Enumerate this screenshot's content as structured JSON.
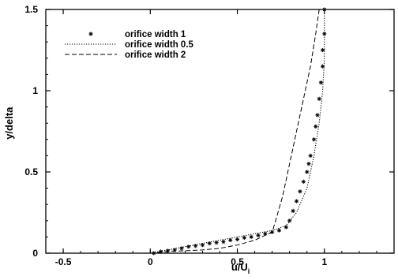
{
  "chart_data": {
    "type": "line",
    "xlabel": "u/U",
    "xlabel_subscript": "i",
    "ylabel": "y/delta",
    "xlim": [
      -0.6,
      1.4
    ],
    "ylim": [
      0,
      1.5
    ],
    "xticks": [
      {
        "value": -0.5,
        "label": "-0.5"
      },
      {
        "value": 0,
        "label": "0"
      },
      {
        "value": 0.5,
        "label": "0.5"
      },
      {
        "value": 1,
        "label": "1"
      }
    ],
    "yticks": [
      {
        "value": 0,
        "label": "0"
      },
      {
        "value": 0.5,
        "label": "0.5"
      },
      {
        "value": 1,
        "label": "1"
      },
      {
        "value": 1.5,
        "label": "1.5"
      }
    ],
    "legend_position": "top-left",
    "series": [
      {
        "name": "orifice width 1",
        "style": "asterisk-markers",
        "x": [
          0.02,
          0.06,
          0.1,
          0.14,
          0.18,
          0.22,
          0.26,
          0.3,
          0.34,
          0.38,
          0.42,
          0.46,
          0.5,
          0.54,
          0.58,
          0.62,
          0.66,
          0.7,
          0.74,
          0.78,
          0.8,
          0.82,
          0.84,
          0.86,
          0.88,
          0.9,
          0.91,
          0.92,
          0.94,
          0.95,
          0.96,
          0.97,
          0.98,
          0.99,
          0.99,
          1.0,
          1.0
        ],
        "y": [
          0.0,
          0.01,
          0.015,
          0.02,
          0.03,
          0.04,
          0.045,
          0.05,
          0.06,
          0.065,
          0.07,
          0.08,
          0.085,
          0.095,
          0.1,
          0.11,
          0.12,
          0.13,
          0.14,
          0.16,
          0.2,
          0.26,
          0.32,
          0.38,
          0.44,
          0.5,
          0.55,
          0.6,
          0.7,
          0.78,
          0.85,
          0.95,
          1.05,
          1.15,
          1.25,
          1.35,
          1.5
        ]
      },
      {
        "name": "orifice width 0.5",
        "style": "dotted",
        "x": [
          0.0,
          0.1,
          0.2,
          0.3,
          0.4,
          0.5,
          0.6,
          0.7,
          0.78,
          0.84,
          0.9,
          0.94,
          0.97,
          0.99,
          1.0,
          1.0
        ],
        "y": [
          0.0,
          0.02,
          0.04,
          0.06,
          0.08,
          0.1,
          0.12,
          0.14,
          0.17,
          0.25,
          0.4,
          0.6,
          0.8,
          1.0,
          1.2,
          1.5
        ]
      },
      {
        "name": "orifice width 2",
        "style": "dashed",
        "x": [
          0.0,
          0.1,
          0.2,
          0.3,
          0.4,
          0.5,
          0.6,
          0.7,
          0.72,
          0.76,
          0.8,
          0.84,
          0.88,
          0.92,
          0.95,
          0.97
        ],
        "y": [
          0.0,
          0.01,
          0.015,
          0.02,
          0.03,
          0.05,
          0.08,
          0.13,
          0.2,
          0.35,
          0.55,
          0.75,
          0.95,
          1.15,
          1.35,
          1.5
        ]
      }
    ]
  }
}
